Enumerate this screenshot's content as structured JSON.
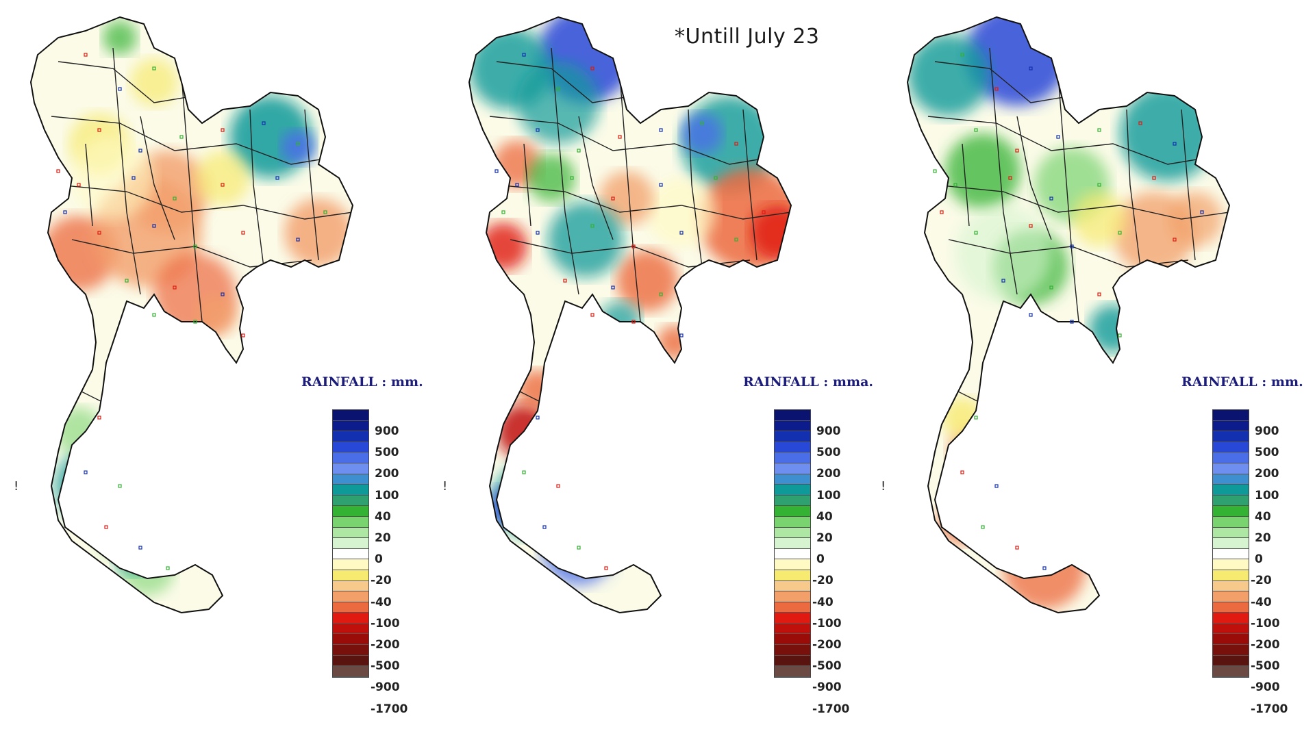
{
  "note": "*Untill July 23",
  "legend": {
    "colors": [
      "#0a1470",
      "#0c1c8c",
      "#1230b0",
      "#2848d8",
      "#4a6ee8",
      "#6f8ff0",
      "#3d8fd0",
      "#0f9a9a",
      "#2fa070",
      "#33b233",
      "#79d36f",
      "#aee7a3",
      "#d6f4cf",
      "#ffffff",
      "#fffac4",
      "#f7ea70",
      "#f7c98a",
      "#f29f6a",
      "#ec6a3f",
      "#e01a10",
      "#c0100c",
      "#9a0c08",
      "#78100c",
      "#5a1410",
      "#6b4a44"
    ],
    "ticks": [
      "900",
      "500",
      "200",
      "100",
      "40",
      "20",
      "0",
      "-20",
      "-40",
      "-100",
      "-200",
      "-500",
      "-900",
      "-1700"
    ]
  },
  "panels": [
    {
      "id": "left",
      "legend_title": "RAINFALL : mm.",
      "theme": "dry",
      "blobs": [
        {
          "c": "#ec6a3f",
          "o": 0.75
        },
        {
          "c": "#f29f6a",
          "o": 0.8
        },
        {
          "c": "#33b233",
          "o": 0.7
        },
        {
          "c": "#0f9a9a",
          "o": 0.8
        },
        {
          "c": "#4a6ee8",
          "o": 0.7
        },
        {
          "c": "#f7ea70",
          "o": 0.7
        }
      ]
    },
    {
      "id": "middle",
      "legend_title": "RAINFALL : mma.",
      "theme": "mixed",
      "blobs": []
    },
    {
      "id": "right",
      "legend_title": "RAINFALL : mm.",
      "theme": "wet-north-dry-south",
      "blobs": []
    }
  ]
}
